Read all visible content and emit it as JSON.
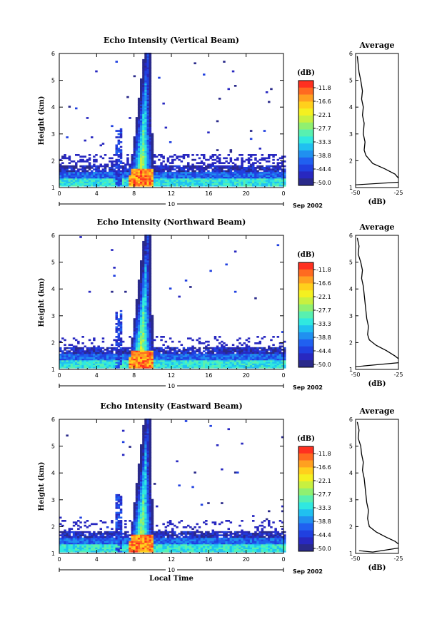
{
  "colorbar": {
    "unit_label": "(dB)",
    "tick_labels": [
      "-11.8",
      "-16.6",
      "-22.1",
      "-27.7",
      "-33.3",
      "-38.8",
      "-44.4",
      "-50.0"
    ],
    "colors": [
      "#ff3020",
      "#ff6a20",
      "#ffa020",
      "#ffd01c",
      "#f4f020",
      "#c8f040",
      "#90f070",
      "#58f0b0",
      "#30e8e0",
      "#20c0f0",
      "#2090f0",
      "#2060f0",
      "#2040e0",
      "#2828c0",
      "#2a2a8a"
    ]
  },
  "date_label": "Sep 2002",
  "date_day": "10",
  "avg_xlabel": "(dB)",
  "xlabel_bottom": "Local Time",
  "chart_data": [
    {
      "type": "heatmap",
      "title": "Echo Intensity (Vertical Beam)",
      "ylabel": "Height (km)",
      "x_ticks": [
        "0",
        "4",
        "8",
        "12",
        "16",
        "20",
        "0"
      ],
      "y_ticks": [
        "1",
        "2",
        "3",
        "4",
        "5",
        "6"
      ],
      "xlim": [
        0,
        24
      ],
      "ylim": [
        1,
        6
      ],
      "avg_title": "Average",
      "avg_xlim": [
        -50,
        -25
      ],
      "avg_xticks": [
        "-50",
        "-25"
      ],
      "avg_profile": [
        [
          -49,
          5.9
        ],
        [
          -48.5,
          5.6
        ],
        [
          -48,
          5.3
        ],
        [
          -47,
          5.0
        ],
        [
          -46,
          4.6
        ],
        [
          -46.5,
          4.3
        ],
        [
          -45.5,
          4.0
        ],
        [
          -46,
          3.7
        ],
        [
          -45,
          3.4
        ],
        [
          -45.5,
          3.0
        ],
        [
          -44.5,
          2.7
        ],
        [
          -45,
          2.4
        ],
        [
          -44,
          2.2
        ],
        [
          -40,
          1.9
        ],
        [
          -33,
          1.7
        ],
        [
          -27,
          1.5
        ],
        [
          -25,
          1.35
        ]
      ],
      "avg_profile_low": [
        [
          -50,
          1.1
        ],
        [
          -25,
          1.2
        ]
      ]
    },
    {
      "type": "heatmap",
      "title": "Echo Intensity (Northward Beam)",
      "ylabel": "Height (km)",
      "x_ticks": [
        "0",
        "4",
        "8",
        "12",
        "16",
        "20",
        "0"
      ],
      "y_ticks": [
        "1",
        "2",
        "3",
        "4",
        "5",
        "6"
      ],
      "xlim": [
        0,
        24
      ],
      "ylim": [
        1,
        6
      ],
      "avg_title": "Average",
      "avg_xlim": [
        -50,
        -25
      ],
      "avg_xticks": [
        "-50",
        "-25"
      ],
      "avg_profile": [
        [
          -49,
          5.9
        ],
        [
          -48,
          5.6
        ],
        [
          -48.5,
          5.3
        ],
        [
          -47,
          5.0
        ],
        [
          -46,
          4.7
        ],
        [
          -46.5,
          4.4
        ],
        [
          -45.5,
          4.1
        ],
        [
          -45,
          3.8
        ],
        [
          -44.5,
          3.5
        ],
        [
          -44,
          3.2
        ],
        [
          -43.5,
          2.9
        ],
        [
          -42.5,
          2.6
        ],
        [
          -43,
          2.3
        ],
        [
          -42,
          2.1
        ],
        [
          -38,
          1.9
        ],
        [
          -32,
          1.7
        ],
        [
          -27,
          1.5
        ],
        [
          -25,
          1.4
        ]
      ],
      "avg_profile_low": [
        [
          -50,
          1.1
        ],
        [
          -25,
          1.25
        ]
      ]
    },
    {
      "type": "heatmap",
      "title": "Echo Intensity (Eastward Beam)",
      "ylabel": "Height (km)",
      "x_ticks": [
        "0",
        "4",
        "8",
        "12",
        "16",
        "20",
        "0"
      ],
      "y_ticks": [
        "1",
        "2",
        "3",
        "4",
        "5",
        "6"
      ],
      "xlim": [
        0,
        24
      ],
      "ylim": [
        1,
        6
      ],
      "avg_title": "Average",
      "avg_xlim": [
        -50,
        -25
      ],
      "avg_xticks": [
        "-50",
        "-25"
      ],
      "avg_profile": [
        [
          -49,
          5.9
        ],
        [
          -48,
          5.6
        ],
        [
          -48.5,
          5.3
        ],
        [
          -47,
          5.0
        ],
        [
          -46.5,
          4.7
        ],
        [
          -45.5,
          4.4
        ],
        [
          -46,
          4.1
        ],
        [
          -45,
          3.8
        ],
        [
          -44.5,
          3.5
        ],
        [
          -44,
          3.2
        ],
        [
          -43.5,
          2.9
        ],
        [
          -42.5,
          2.6
        ],
        [
          -43,
          2.3
        ],
        [
          -42,
          2.0
        ],
        [
          -38,
          1.8
        ],
        [
          -32,
          1.6
        ],
        [
          -27,
          1.45
        ],
        [
          -25,
          1.35
        ]
      ],
      "avg_profile_low": [
        [
          -48,
          1.1
        ],
        [
          -40,
          1.05
        ],
        [
          -25,
          1.2
        ]
      ]
    }
  ]
}
